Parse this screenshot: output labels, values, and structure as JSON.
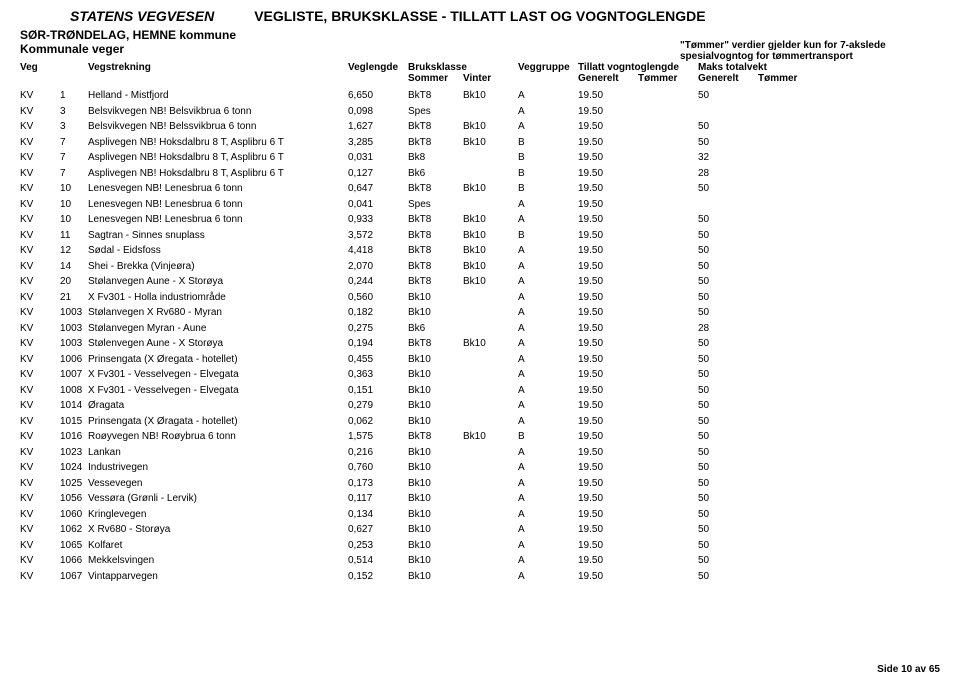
{
  "header": {
    "org": "STATENS VEGVESEN",
    "title": "VEGLISTE,  BRUKSKLASSE - TILLATT LAST OG VOGNTOGLENGDE",
    "region": "SØR-TRØNDELAG, HEMNE kommune",
    "subregion": "Kommunale veger",
    "note_l1": "\"Tømmer\" verdier gjelder kun for 7-akslede",
    "note_l2": "spesialvogntog for tømmertransport"
  },
  "columns": {
    "c0": "Veg",
    "c1": "",
    "c2": "Vegstrekning",
    "c3": "Veglengde",
    "c4a": "Bruksklasse",
    "c4b": "Sommer",
    "c5b": "Vinter",
    "c6": "Veggruppe",
    "c7a": "Tillatt vogntoglengde",
    "c7b": "Generelt",
    "c8b": "Tømmer",
    "c9a": "Maks totalvekt",
    "c9b": "Generelt",
    "c10b": "Tømmer"
  },
  "rows": [
    {
      "a": "KV",
      "b": "1",
      "c": "Helland - Mistfjord",
      "d": "6,650",
      "e": "BkT8",
      "f": "Bk10",
      "g": "A",
      "h": "19.50",
      "i": "",
      "j": "50",
      "k": ""
    },
    {
      "a": "KV",
      "b": "3",
      "c": "Belsvikvegen NB! Belsvikbrua 6 tonn",
      "d": "0,098",
      "e": "Spes",
      "f": "",
      "g": "A",
      "h": "19.50",
      "i": "",
      "j": "",
      "k": ""
    },
    {
      "a": "KV",
      "b": "3",
      "c": "Belsvikvegen NB! Belssvikbrua 6 tonn",
      "d": "1,627",
      "e": "BkT8",
      "f": "Bk10",
      "g": "A",
      "h": "19.50",
      "i": "",
      "j": "50",
      "k": ""
    },
    {
      "a": "KV",
      "b": "7",
      "c": "Asplivegen NB! Hoksdalbru 8 T, Asplibru 6 T",
      "d": "3,285",
      "e": "BkT8",
      "f": "Bk10",
      "g": "B",
      "h": "19.50",
      "i": "",
      "j": "50",
      "k": ""
    },
    {
      "a": "KV",
      "b": "7",
      "c": "Asplivegen NB! Hoksdalbru 8 T, Asplibru 6 T",
      "d": "0,031",
      "e": "Bk8",
      "f": "",
      "g": "B",
      "h": "19.50",
      "i": "",
      "j": "32",
      "k": ""
    },
    {
      "a": "KV",
      "b": "7",
      "c": "Asplivegen NB! Hoksdalbru 8 T, Asplibru 6 T",
      "d": "0,127",
      "e": "Bk6",
      "f": "",
      "g": "B",
      "h": "19.50",
      "i": "",
      "j": "28",
      "k": ""
    },
    {
      "a": "KV",
      "b": "10",
      "c": "Lenesvegen NB! Lenesbrua 6 tonn",
      "d": "0,647",
      "e": "BkT8",
      "f": "Bk10",
      "g": "B",
      "h": "19.50",
      "i": "",
      "j": "50",
      "k": ""
    },
    {
      "a": "KV",
      "b": "10",
      "c": "Lenesvegen NB! Lenesbrua 6 tonn",
      "d": "0,041",
      "e": "Spes",
      "f": "",
      "g": "A",
      "h": "19.50",
      "i": "",
      "j": "",
      "k": ""
    },
    {
      "a": "KV",
      "b": "10",
      "c": "Lenesvegen NB! Lenesbrua 6 tonn",
      "d": "0,933",
      "e": "BkT8",
      "f": "Bk10",
      "g": "A",
      "h": "19.50",
      "i": "",
      "j": "50",
      "k": ""
    },
    {
      "a": "KV",
      "b": "11",
      "c": "Sagtran - Sinnes snuplass",
      "d": "3,572",
      "e": "BkT8",
      "f": "Bk10",
      "g": "B",
      "h": "19.50",
      "i": "",
      "j": "50",
      "k": ""
    },
    {
      "a": "KV",
      "b": "12",
      "c": "Sødal - Eidsfoss",
      "d": "4,418",
      "e": "BkT8",
      "f": "Bk10",
      "g": "A",
      "h": "19.50",
      "i": "",
      "j": "50",
      "k": ""
    },
    {
      "a": "KV",
      "b": "14",
      "c": "Shei - Brekka (Vinjeøra)",
      "d": "2,070",
      "e": "BkT8",
      "f": "Bk10",
      "g": "A",
      "h": "19.50",
      "i": "",
      "j": "50",
      "k": ""
    },
    {
      "a": "KV",
      "b": "20",
      "c": "Stølanvegen Aune - X Storøya",
      "d": "0,244",
      "e": "BkT8",
      "f": "Bk10",
      "g": "A",
      "h": "19.50",
      "i": "",
      "j": "50",
      "k": ""
    },
    {
      "a": "KV",
      "b": "21",
      "c": "X Fv301 - Holla industriområde",
      "d": "0,560",
      "e": "Bk10",
      "f": "",
      "g": "A",
      "h": "19.50",
      "i": "",
      "j": "50",
      "k": ""
    },
    {
      "a": "KV",
      "b": "1003",
      "c": "Stølanvegen X Rv680 - Myran",
      "d": "0,182",
      "e": "Bk10",
      "f": "",
      "g": "A",
      "h": "19.50",
      "i": "",
      "j": "50",
      "k": ""
    },
    {
      "a": "KV",
      "b": "1003",
      "c": "Stølanvegen Myran - Aune",
      "d": "0,275",
      "e": "Bk6",
      "f": "",
      "g": "A",
      "h": "19.50",
      "i": "",
      "j": "28",
      "k": ""
    },
    {
      "a": "KV",
      "b": "1003",
      "c": "Stølenvegen Aune - X Storøya",
      "d": "0,194",
      "e": "BkT8",
      "f": "Bk10",
      "g": "A",
      "h": "19.50",
      "i": "",
      "j": "50",
      "k": ""
    },
    {
      "a": "KV",
      "b": "1006",
      "c": "Prinsengata (X Øregata - hotellet)",
      "d": "0,455",
      "e": "Bk10",
      "f": "",
      "g": "A",
      "h": "19.50",
      "i": "",
      "j": "50",
      "k": ""
    },
    {
      "a": "KV",
      "b": "1007",
      "c": "X Fv301 - Vesselvegen - Elvegata",
      "d": "0,363",
      "e": "Bk10",
      "f": "",
      "g": "A",
      "h": "19.50",
      "i": "",
      "j": "50",
      "k": ""
    },
    {
      "a": "KV",
      "b": "1008",
      "c": "X Fv301 - Vesselvegen - Elvegata",
      "d": "0,151",
      "e": "Bk10",
      "f": "",
      "g": "A",
      "h": "19.50",
      "i": "",
      "j": "50",
      "k": ""
    },
    {
      "a": "KV",
      "b": "1014",
      "c": "Øragata",
      "d": "0,279",
      "e": "Bk10",
      "f": "",
      "g": "A",
      "h": "19.50",
      "i": "",
      "j": "50",
      "k": ""
    },
    {
      "a": "KV",
      "b": "1015",
      "c": "Prinsengata (X Øragata - hotellet)",
      "d": "0,062",
      "e": "Bk10",
      "f": "",
      "g": "A",
      "h": "19.50",
      "i": "",
      "j": "50",
      "k": ""
    },
    {
      "a": "KV",
      "b": "1016",
      "c": "Roøyvegen NB! Roøybrua 6 tonn",
      "d": "1,575",
      "e": "BkT8",
      "f": "Bk10",
      "g": "B",
      "h": "19.50",
      "i": "",
      "j": "50",
      "k": ""
    },
    {
      "a": "KV",
      "b": "1023",
      "c": "Lankan",
      "d": "0,216",
      "e": "Bk10",
      "f": "",
      "g": "A",
      "h": "19.50",
      "i": "",
      "j": "50",
      "k": ""
    },
    {
      "a": "KV",
      "b": "1024",
      "c": "Industrivegen",
      "d": "0,760",
      "e": "Bk10",
      "f": "",
      "g": "A",
      "h": "19.50",
      "i": "",
      "j": "50",
      "k": ""
    },
    {
      "a": "KV",
      "b": "1025",
      "c": "Vessevegen",
      "d": "0,173",
      "e": "Bk10",
      "f": "",
      "g": "A",
      "h": "19.50",
      "i": "",
      "j": "50",
      "k": ""
    },
    {
      "a": "KV",
      "b": "1056",
      "c": "Vessøra (Grønli - Lervik)",
      "d": "0,117",
      "e": "Bk10",
      "f": "",
      "g": "A",
      "h": "19.50",
      "i": "",
      "j": "50",
      "k": ""
    },
    {
      "a": "KV",
      "b": "1060",
      "c": "Kringlevegen",
      "d": "0,134",
      "e": "Bk10",
      "f": "",
      "g": "A",
      "h": "19.50",
      "i": "",
      "j": "50",
      "k": ""
    },
    {
      "a": "KV",
      "b": "1062",
      "c": "X Rv680 - Storøya",
      "d": "0,627",
      "e": "Bk10",
      "f": "",
      "g": "A",
      "h": "19.50",
      "i": "",
      "j": "50",
      "k": ""
    },
    {
      "a": "KV",
      "b": "1065",
      "c": "Kolfaret",
      "d": "0,253",
      "e": "Bk10",
      "f": "",
      "g": "A",
      "h": "19.50",
      "i": "",
      "j": "50",
      "k": ""
    },
    {
      "a": "KV",
      "b": "1066",
      "c": "Mekkelsvingen",
      "d": "0,514",
      "e": "Bk10",
      "f": "",
      "g": "A",
      "h": "19.50",
      "i": "",
      "j": "50",
      "k": ""
    },
    {
      "a": "KV",
      "b": "1067",
      "c": "Vintapparvegen",
      "d": "0,152",
      "e": "Bk10",
      "f": "",
      "g": "A",
      "h": "19.50",
      "i": "",
      "j": "50",
      "k": ""
    }
  ],
  "footer": "Side 10 av 65"
}
